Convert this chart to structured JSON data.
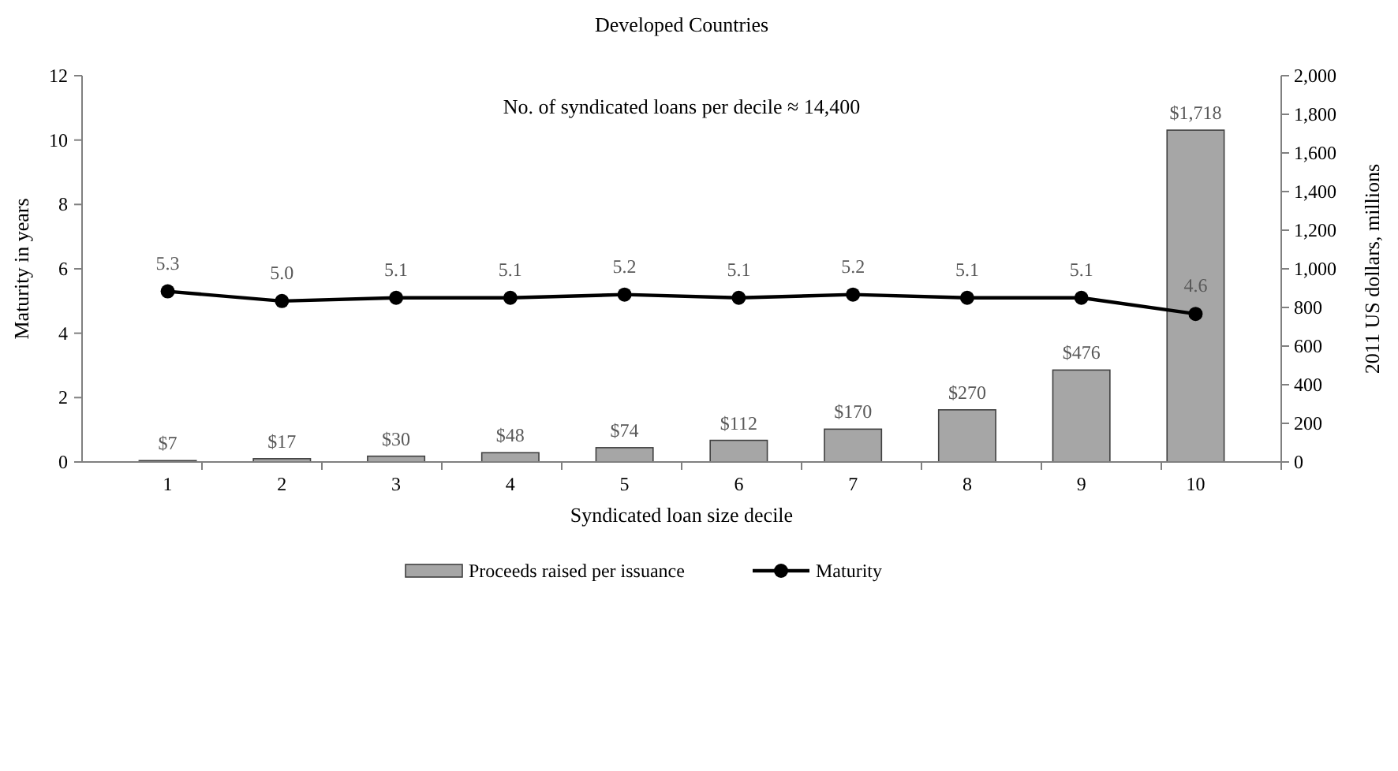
{
  "chart_data": {
    "type": "bar",
    "title": "Developed Countries",
    "xlabel": "Syndicated loan size decile",
    "ylabel": "Maturity in years",
    "y2label": "2011 US dollars, millions",
    "annotations": [
      "No. of syndicated loans per decile ≈ 14,400"
    ],
    "categories": [
      "1",
      "2",
      "3",
      "4",
      "5",
      "6",
      "7",
      "8",
      "9",
      "10"
    ],
    "series": [
      {
        "name": "Proceeds raised per issuance",
        "type": "bar",
        "axis": "y2",
        "color": "#a6a6a6",
        "values": [
          7,
          17,
          30,
          48,
          74,
          112,
          170,
          270,
          476,
          1718
        ],
        "value_labels": [
          "$7",
          "$17",
          "$30",
          "$48",
          "$74",
          "$112",
          "$170",
          "$270",
          "$476",
          "$1,718"
        ]
      },
      {
        "name": "Maturity",
        "type": "line",
        "color": "#000000",
        "marker": "circle",
        "values": [
          5.3,
          5.0,
          5.1,
          5.1,
          5.2,
          5.1,
          5.2,
          5.1,
          5.1,
          4.6
        ],
        "value_labels": [
          "5.3",
          "5.0",
          "5.1",
          "5.1",
          "5.2",
          "5.1",
          "5.2",
          "5.1",
          "5.1",
          "4.6"
        ]
      }
    ],
    "ylim": [
      0,
      12
    ],
    "yticks": [
      0,
      2,
      4,
      6,
      8,
      10,
      12
    ],
    "y2lim": [
      0,
      2000
    ],
    "y2ticks": [
      0,
      200,
      400,
      600,
      800,
      {
        "value": 1000,
        "label": "1,000"
      },
      {
        "value": 1200,
        "label": "1,200"
      },
      {
        "value": 1400,
        "label": "1,400"
      },
      {
        "value": 1600,
        "label": "1,600"
      },
      {
        "value": 1800,
        "label": "1,800"
      },
      {
        "value": 2000,
        "label": "2,000"
      }
    ],
    "grid": false,
    "legend": "bottom"
  }
}
